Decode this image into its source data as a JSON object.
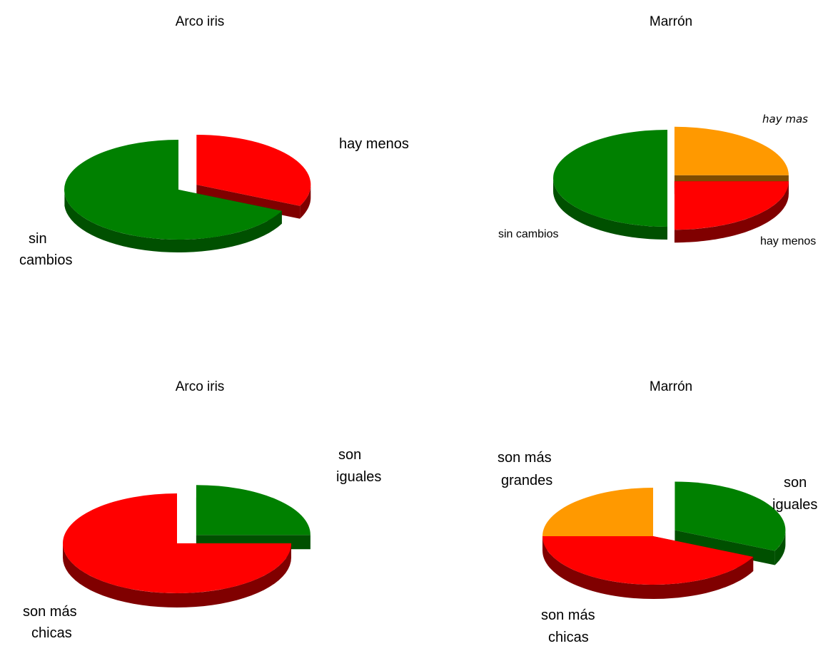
{
  "colors": {
    "green": "#008000",
    "green_dark": "#005000",
    "red": "#ff0000",
    "red_dark": "#800000",
    "orange": "#ff9900",
    "orange_dark": "#804c00"
  },
  "chart_data": [
    {
      "type": "pie",
      "title": "Arco iris",
      "style": "3d-exploded",
      "legend": "none",
      "slices": [
        {
          "label": "hay menos",
          "value": 32,
          "color": "#ff0000",
          "dark": "#800000",
          "exploded": true
        },
        {
          "label": "sin cambios",
          "value": 68,
          "color": "#008000",
          "dark": "#005000",
          "exploded": false
        }
      ]
    },
    {
      "type": "pie",
      "title": "Marrón",
      "style": "3d-exploded",
      "legend": "none",
      "slices": [
        {
          "label": "hay mas",
          "value": 25,
          "color": "#ff9900",
          "dark": "#804c00",
          "exploded": true
        },
        {
          "label": "hay menos",
          "value": 25,
          "color": "#ff0000",
          "dark": "#800000",
          "exploded": true
        },
        {
          "label": "sin cambios",
          "value": 50,
          "color": "#008000",
          "dark": "#005000",
          "exploded": false
        }
      ]
    },
    {
      "type": "pie",
      "title": "Arco iris",
      "style": "3d-exploded",
      "legend": "none",
      "slices": [
        {
          "label": "son iguales",
          "value": 25,
          "color": "#008000",
          "dark": "#005000",
          "exploded": true
        },
        {
          "label": "son más chicas",
          "value": 75,
          "color": "#ff0000",
          "dark": "#800000",
          "exploded": false
        }
      ]
    },
    {
      "type": "pie",
      "title": "Marrón",
      "style": "3d-exploded",
      "legend": "none",
      "slices": [
        {
          "label": "son iguales",
          "value": 32,
          "color": "#008000",
          "dark": "#005000",
          "exploded": true
        },
        {
          "label": "son más chicas",
          "value": 43,
          "color": "#ff0000",
          "dark": "#800000",
          "exploded": false
        },
        {
          "label": "son más grandes",
          "value": 25,
          "color": "#ff9900",
          "dark": "#804c00",
          "exploded": false
        }
      ]
    }
  ]
}
